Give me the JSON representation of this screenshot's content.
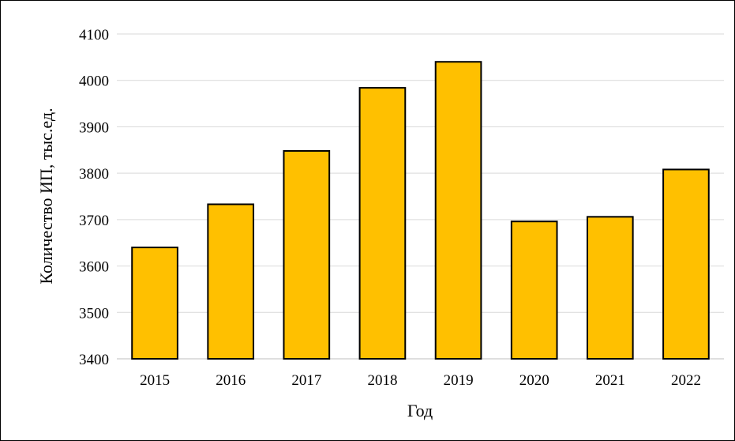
{
  "chart_data": {
    "type": "bar",
    "title": "",
    "xlabel": "Год",
    "ylabel": "Количество ИП, тыс.ед.",
    "categories": [
      "2015",
      "2016",
      "2017",
      "2018",
      "2019",
      "2020",
      "2021",
      "2022"
    ],
    "values": [
      3640,
      3733,
      3848,
      3984,
      4040,
      3696,
      3706,
      3808
    ],
    "ylim": [
      3400,
      4100
    ],
    "yticks": [
      "3400",
      "3500",
      "3600",
      "3700",
      "3800",
      "3900",
      "4000",
      "4100"
    ],
    "grid": true,
    "legend": "none",
    "colors": {
      "bar_fill": "#FFC000",
      "bar_stroke": "#000000",
      "grid": "#D9D9D9",
      "axis": "#BFBFBF"
    }
  }
}
